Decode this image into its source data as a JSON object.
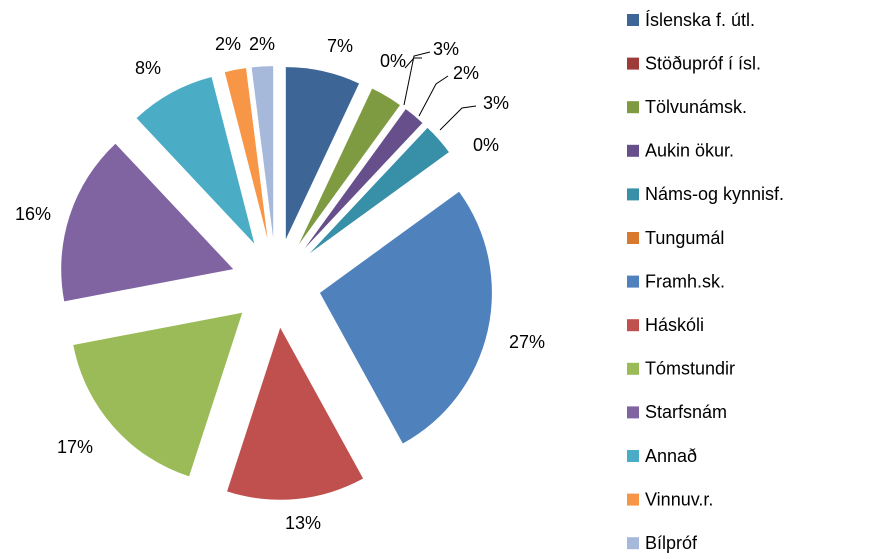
{
  "chart_data": {
    "type": "pie",
    "categories": [
      "Íslenska f. útl.",
      "Stöðupróf í ísl.",
      "Tölvunámsk.",
      "Aukin ökur.",
      "Náms-og kynnisf.",
      "Tungumál",
      "Framh.sk.",
      "Háskóli",
      "Tómstundir",
      "Starfsnám",
      "Annað",
      "Vinnuv.r.",
      "Bílpróf"
    ],
    "values": [
      7,
      0,
      3,
      2,
      3,
      0,
      27,
      13,
      17,
      16,
      8,
      2,
      2
    ],
    "value_labels": [
      "7%",
      "0%",
      "3%",
      "2%",
      "3%",
      "0%",
      "27%",
      "13%",
      "17%",
      "16%",
      "8%",
      "2%",
      "2%"
    ],
    "colors": [
      "#3D6696",
      "#9E3B39",
      "#7E9B42",
      "#664F8A",
      "#378FA8",
      "#D9792D",
      "#4F81BD",
      "#C0504D",
      "#9BBB59",
      "#8064A2",
      "#4BACC6",
      "#F79646",
      "#A7B9DA"
    ],
    "legend": "right"
  }
}
